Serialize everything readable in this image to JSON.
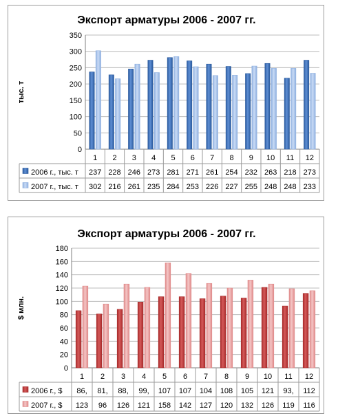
{
  "charts": [
    {
      "title": "Экспорт арматуры 2006 - 2007 гг.",
      "ylabel": "тыс. т",
      "yticks": [
        "0",
        "50",
        "100",
        "150",
        "200",
        "250",
        "300",
        "350"
      ],
      "categories": [
        "1",
        "2",
        "3",
        "4",
        "5",
        "6",
        "7",
        "8",
        "9",
        "10",
        "11",
        "12"
      ],
      "rows": [
        {
          "label": "2006 г., тыс. т",
          "cells": [
            "237",
            "228",
            "246",
            "273",
            "281",
            "271",
            "261",
            "254",
            "232",
            "263",
            "218",
            "273"
          ]
        },
        {
          "label": "2007 г., тыс. т",
          "cells": [
            "302",
            "216",
            "261",
            "235",
            "284",
            "253",
            "226",
            "227",
            "255",
            "248",
            "248",
            "233"
          ]
        }
      ],
      "colors": {
        "s1": "#2a5a9e",
        "s1_light": "#5f8fd4",
        "s2": "#8fb0e0",
        "s2_light": "#c9dbf5"
      }
    },
    {
      "title": "Экспорт арматуры 2006 - 2007 гг.",
      "ylabel": "$ млн.",
      "yticks": [
        "0",
        "20",
        "40",
        "60",
        "80",
        "100",
        "120",
        "140",
        "160",
        "180"
      ],
      "categories": [
        "1",
        "2",
        "3",
        "4",
        "5",
        "6",
        "7",
        "8",
        "9",
        "10",
        "11",
        "12"
      ],
      "rows": [
        {
          "label": "2006 г., $",
          "cells": [
            "86,",
            "81,",
            "88,",
            "99,",
            "107",
            "107",
            "104",
            "108",
            "105",
            "121",
            "93,",
            "112"
          ]
        },
        {
          "label": "2007 г., $",
          "cells": [
            "123",
            "96",
            "126",
            "121",
            "158",
            "142",
            "127",
            "120",
            "132",
            "126",
            "119",
            "116"
          ]
        }
      ],
      "colors": {
        "s1": "#a82a2a",
        "s1_light": "#d45a5a",
        "s2": "#e08a8a",
        "s2_light": "#f4c6c6"
      }
    }
  ],
  "chart_data": [
    {
      "type": "bar",
      "title": "Экспорт арматуры 2006 - 2007 гг.",
      "xlabel": "",
      "ylabel": "тыс. т",
      "ylim": [
        0,
        350
      ],
      "grid": true,
      "categories": [
        "1",
        "2",
        "3",
        "4",
        "5",
        "6",
        "7",
        "8",
        "9",
        "10",
        "11",
        "12"
      ],
      "series": [
        {
          "name": "2006 г., тыс. т",
          "values": [
            237,
            228,
            246,
            273,
            281,
            271,
            261,
            254,
            232,
            263,
            218,
            273
          ]
        },
        {
          "name": "2007 г., тыс. т",
          "values": [
            302,
            216,
            261,
            235,
            284,
            253,
            226,
            227,
            255,
            248,
            248,
            233
          ]
        }
      ]
    },
    {
      "type": "bar",
      "title": "Экспорт арматуры 2006 - 2007 гг.",
      "xlabel": "",
      "ylabel": "$ млн.",
      "ylim": [
        0,
        180
      ],
      "grid": true,
      "categories": [
        "1",
        "2",
        "3",
        "4",
        "5",
        "6",
        "7",
        "8",
        "9",
        "10",
        "11",
        "12"
      ],
      "series": [
        {
          "name": "2006 г., $",
          "values": [
            86,
            81,
            88,
            99,
            107,
            107,
            104,
            108,
            105,
            121,
            93,
            112
          ]
        },
        {
          "name": "2007 г., $",
          "values": [
            123,
            96,
            126,
            121,
            158,
            142,
            127,
            120,
            132,
            126,
            119,
            116
          ]
        }
      ]
    }
  ]
}
